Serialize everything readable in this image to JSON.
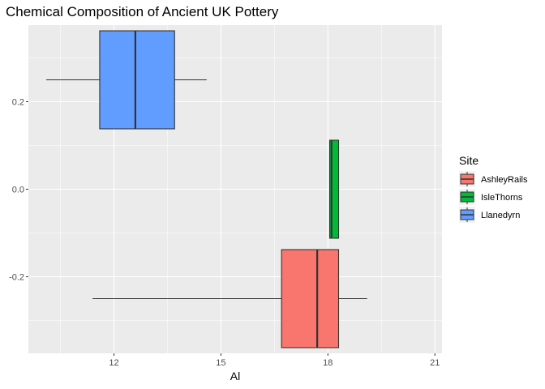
{
  "chart_data": {
    "type": "boxplot",
    "title": "Chemical Composition of Ancient UK Pottery",
    "xlabel": "Al",
    "ylabel": "",
    "xlim": [
      9.6,
      21.2
    ],
    "ylim": [
      -0.375,
      0.375
    ],
    "x_ticks": [
      12,
      15,
      18,
      21
    ],
    "y_ticks": [
      0.2,
      0.0,
      -0.2
    ],
    "y_tick_labels": [
      "0.2",
      "0.0",
      "-0.2"
    ],
    "grid": true,
    "legend": {
      "title": "Site",
      "position": "right"
    },
    "series": [
      {
        "name": "AshleyRails",
        "color": "#F8766D",
        "min": 11.4,
        "q1": 16.7,
        "median": 17.7,
        "q3": 18.3,
        "max": 19.1,
        "y_center": -0.25,
        "y_half": 0.112
      },
      {
        "name": "IsleThorns",
        "color": "#00BA38",
        "min": 18.05,
        "q1": 18.05,
        "median": 18.1,
        "q3": 18.3,
        "max": 18.3,
        "y_center": 0.0,
        "y_half": 0.112
      },
      {
        "name": "Llanedyrn",
        "color": "#619CFF",
        "min": 10.1,
        "q1": 11.6,
        "median": 12.6,
        "q3": 13.7,
        "max": 14.6,
        "y_center": 0.25,
        "y_half": 0.112
      }
    ]
  }
}
